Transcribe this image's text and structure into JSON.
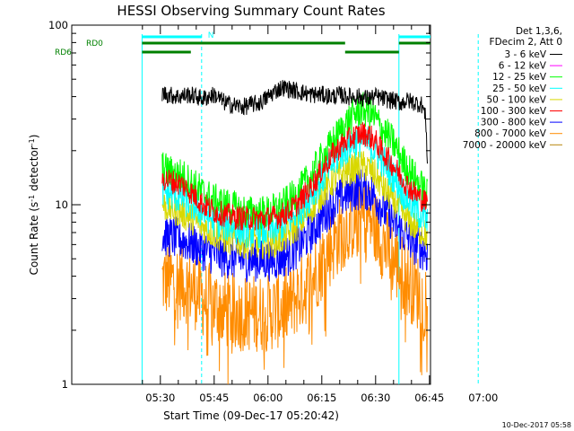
{
  "chart_data": {
    "type": "line",
    "title": "HESSI Observing Summary Count Rates",
    "xlabel": "Start Time (09-Dec-17 05:20:42)",
    "ylabel_main": "Count Rate (s",
    "ylabel_sup1": "-1",
    "ylabel_mid": " detector",
    "ylabel_sup2": "-1",
    "ylabel_end": ")",
    "yscale": "log",
    "ylim": [
      1,
      100
    ],
    "xlim_minutes": [
      5.3,
      105.3
    ],
    "x_ticks": [
      {
        "m": 30,
        "label": "05:30"
      },
      {
        "m": 45,
        "label": "05:45"
      },
      {
        "m": 60,
        "label": "06:00"
      },
      {
        "m": 75,
        "label": "06:15"
      },
      {
        "m": 90,
        "label": "06:30"
      },
      {
        "m": 105,
        "label": "06:45"
      },
      {
        "m": 120,
        "label": "07:00"
      }
    ],
    "y_tick_labels": [
      {
        "v": 1,
        "label": "1"
      },
      {
        "v": 10,
        "label": "10"
      },
      {
        "v": 100,
        "label": "100"
      }
    ],
    "legend_header": [
      "Det 1,3,6,",
      "FDecim 2, Att 0"
    ],
    "legend_position": "top-right",
    "series": [
      {
        "name": "3 - 6 keV",
        "color": "#000000",
        "x": [
          30.5,
          32,
          35,
          38,
          40,
          42,
          45,
          48,
          50,
          53,
          55,
          58,
          60,
          62,
          64,
          66,
          68,
          70,
          72,
          75,
          78,
          80,
          82,
          85,
          88,
          90,
          92,
          95,
          97,
          99,
          101,
          103,
          104,
          104.5
        ],
        "y": [
          42,
          41,
          40,
          41,
          40,
          39,
          41,
          37,
          36,
          35,
          36,
          37,
          40,
          43,
          45,
          44,
          43,
          42,
          41,
          41,
          40,
          41,
          40,
          40,
          39,
          40,
          39,
          38,
          37,
          38,
          37,
          36,
          30,
          16
        ]
      },
      {
        "name": "6 - 12 keV",
        "color": "#ff00ff",
        "x": [],
        "y": []
      },
      {
        "name": "12 - 25 keV",
        "color": "#00ff00",
        "x": [
          30.5,
          33,
          36,
          39,
          42,
          45,
          48,
          51,
          54,
          57,
          60,
          63,
          66,
          69,
          72,
          75,
          78,
          81,
          84,
          86,
          88,
          90,
          92,
          95,
          98,
          101,
          103.5,
          104.5
        ],
        "y": [
          16,
          15,
          14.5,
          13,
          11.5,
          10.5,
          10,
          9.5,
          9,
          9,
          9,
          9.5,
          10.5,
          12,
          14.5,
          18,
          22,
          27,
          32,
          34,
          33,
          30,
          26,
          22,
          17,
          14,
          12,
          11
        ]
      },
      {
        "name": "25 - 50 keV",
        "color": "#00ffff",
        "x": [
          30.5,
          33,
          36,
          39,
          42,
          45,
          48,
          51,
          54,
          57,
          60,
          63,
          66,
          69,
          72,
          75,
          78,
          81,
          84,
          86,
          88,
          90,
          92,
          95,
          98,
          101,
          103.5,
          104.5
        ],
        "y": [
          12,
          11.5,
          11,
          10,
          9,
          8.2,
          7.8,
          7.5,
          7.2,
          7.2,
          7.2,
          7.5,
          8.2,
          9.5,
          11.5,
          14,
          17,
          20,
          22.5,
          23,
          22,
          20,
          17.5,
          14.5,
          11.5,
          9.5,
          8.5,
          8
        ]
      },
      {
        "name": "50 - 100 keV",
        "color": "#d8d800",
        "x": [
          30.5,
          33,
          36,
          39,
          42,
          45,
          48,
          51,
          54,
          57,
          60,
          63,
          66,
          69,
          72,
          75,
          78,
          81,
          84,
          86,
          88,
          90,
          92,
          95,
          98,
          101,
          103.5,
          104.5
        ],
        "y": [
          10,
          9.5,
          9,
          8.3,
          7.5,
          6.9,
          6.5,
          6.3,
          6.1,
          6.1,
          6.1,
          6.3,
          6.9,
          8,
          9.5,
          11.5,
          13.5,
          15,
          16,
          16.5,
          16,
          14.5,
          12.5,
          10.5,
          8.7,
          7.5,
          7,
          6.5
        ]
      },
      {
        "name": "100 - 300 keV",
        "color": "#ff0000",
        "x": [
          30.5,
          33,
          36,
          39,
          42,
          45,
          48,
          51,
          54,
          57,
          60,
          63,
          66,
          69,
          72,
          75,
          78,
          81,
          84,
          86,
          88,
          90,
          92,
          95,
          98,
          101,
          103.5,
          104.5
        ],
        "y": [
          14,
          13.5,
          13,
          11.5,
          10,
          9.2,
          8.8,
          8.5,
          8.4,
          8.4,
          8.4,
          8.6,
          9.2,
          10.5,
          12.5,
          15.5,
          19,
          22,
          24,
          25,
          24.5,
          22.5,
          19.5,
          16.5,
          13.5,
          11.5,
          10.5,
          10
        ]
      },
      {
        "name": "300 - 800 keV",
        "color": "#0000ff",
        "x": [
          30.5,
          33,
          36,
          39,
          42,
          45,
          48,
          51,
          54,
          57,
          60,
          63,
          66,
          69,
          72,
          75,
          78,
          81,
          84,
          86,
          88,
          90,
          92,
          95,
          98,
          101,
          103.5,
          104.5
        ],
        "y": [
          6.8,
          6.6,
          6.4,
          6,
          5.6,
          5.3,
          5.1,
          5,
          4.9,
          4.9,
          4.9,
          5,
          5.3,
          6,
          7,
          8.5,
          10,
          11.2,
          12,
          12.3,
          12,
          11,
          9.5,
          8,
          6.8,
          6,
          5.6,
          5.3
        ]
      },
      {
        "name": "800 - 7000 keV",
        "color": "#ff8c00",
        "x": [
          30.5,
          33,
          36,
          39,
          42,
          45,
          48,
          51,
          54,
          57,
          60,
          63,
          66,
          69,
          72,
          75,
          78,
          81,
          84,
          86,
          88,
          90,
          92,
          95,
          98,
          101,
          103.5,
          104.5
        ],
        "y": [
          3.8,
          3.8,
          3.7,
          3.4,
          3,
          2.8,
          2.6,
          2.5,
          2.5,
          2.5,
          2.5,
          2.6,
          2.8,
          3.2,
          3.8,
          4.8,
          6,
          7.2,
          8.2,
          8.6,
          8.4,
          7.5,
          6.2,
          5,
          4,
          3.4,
          3,
          2.8
        ]
      },
      {
        "name": "7000 - 20000 keV",
        "color": "#b8860b",
        "x": [],
        "y": []
      }
    ],
    "vertical_lines": [
      {
        "m": 24.9,
        "style": "solid",
        "color": "#00ffff"
      },
      {
        "m": 41.5,
        "style": "dashed",
        "color": "#00ffff"
      },
      {
        "m": 96.5,
        "style": "solid",
        "color": "#00ffff"
      },
      {
        "m": 118.6,
        "style": "dashed",
        "color": "#00ffff"
      }
    ],
    "timeline_bars": [
      {
        "label": "",
        "color": "#00ffff",
        "segments": [
          [
            24.9,
            41.5
          ],
          [
            96.5,
            118.6
          ]
        ]
      },
      {
        "label": "RD0",
        "color": "#008000",
        "segments": [
          [
            24.9,
            81.5
          ],
          [
            96.5,
            118.6
          ]
        ]
      },
      {
        "label": "RD6",
        "color": "#008000",
        "segments": [
          [
            24.9,
            38.5
          ],
          [
            81.5,
            96.5
          ]
        ]
      }
    ],
    "timeline_annotation": "N",
    "footer_date": "10-Dec-2017 05:58"
  }
}
